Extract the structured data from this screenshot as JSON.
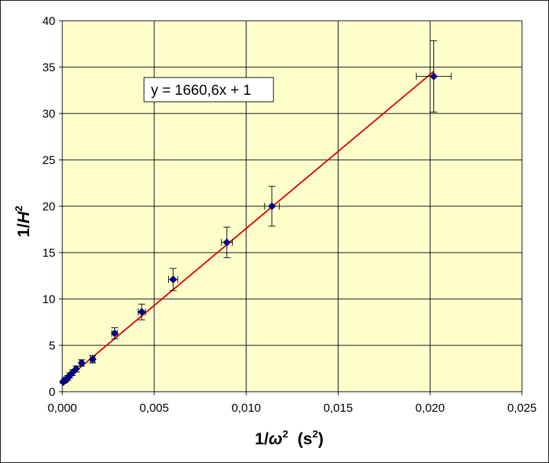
{
  "chart_data": {
    "type": "scatter",
    "xlabel": {
      "base": "1/",
      "symbol": "ω",
      "sup": "2",
      "unit_open": "  (s",
      "unit_sup": "2",
      "unit_close": ")"
    },
    "ylabel": {
      "base": "1/",
      "symbol": "H",
      "sup": "2"
    },
    "xlim": [
      0,
      0.025
    ],
    "ylim": [
      0,
      40
    ],
    "x_ticks": [
      0,
      0.005,
      0.01,
      0.015,
      0.02,
      0.025
    ],
    "x_tick_labels": [
      "0,000",
      "0,005",
      "0,010",
      "0,015",
      "0,020",
      "0,025"
    ],
    "y_ticks": [
      0,
      5,
      10,
      15,
      20,
      25,
      30,
      35,
      40
    ],
    "y_tick_labels": [
      "0",
      "5",
      "10",
      "15",
      "20",
      "25",
      "30",
      "35",
      "40"
    ],
    "grid": true,
    "plot_background": "#FFFFCC",
    "marker_color": "#000080",
    "line_color": "#E00000",
    "series": [
      {
        "points": [
          {
            "x": 5e-05,
            "y": 1.05,
            "xerr": 2e-05,
            "yerr": 0.15
          },
          {
            "x": 0.0001,
            "y": 1.15,
            "xerr": 2e-05,
            "yerr": 0.18
          },
          {
            "x": 0.00015,
            "y": 1.25,
            "xerr": 3e-05,
            "yerr": 0.2
          },
          {
            "x": 0.0002,
            "y": 1.35,
            "xerr": 3e-05,
            "yerr": 0.22
          },
          {
            "x": 0.0003,
            "y": 1.5,
            "xerr": 4e-05,
            "yerr": 0.25
          },
          {
            "x": 0.0004,
            "y": 1.75,
            "xerr": 5e-05,
            "yerr": 0.28
          },
          {
            "x": 0.00055,
            "y": 2.05,
            "xerr": 6e-05,
            "yerr": 0.3
          },
          {
            "x": 0.00075,
            "y": 2.45,
            "xerr": 8e-05,
            "yerr": 0.32
          },
          {
            "x": 0.00105,
            "y": 3.1,
            "xerr": 0.0001,
            "yerr": 0.35
          },
          {
            "x": 0.00165,
            "y": 3.5,
            "xerr": 0.00012,
            "yerr": 0.4
          },
          {
            "x": 0.00285,
            "y": 6.3,
            "xerr": 0.00015,
            "yerr": 0.6
          },
          {
            "x": 0.00432,
            "y": 8.6,
            "xerr": 0.0002,
            "yerr": 0.85
          },
          {
            "x": 0.00603,
            "y": 12.1,
            "xerr": 0.00025,
            "yerr": 1.2
          },
          {
            "x": 0.00895,
            "y": 16.1,
            "xerr": 0.0003,
            "yerr": 1.65
          },
          {
            "x": 0.0114,
            "y": 20.0,
            "xerr": 0.0004,
            "yerr": 2.15
          },
          {
            "x": 0.0202,
            "y": 34.0,
            "xerr": 0.00095,
            "yerr": 3.85
          }
        ]
      }
    ],
    "trendline": {
      "slope": 1660.6,
      "intercept": 1,
      "x_start": 0,
      "x_end": 0.0202
    },
    "annotation": "y = 1660,6x + 1"
  }
}
